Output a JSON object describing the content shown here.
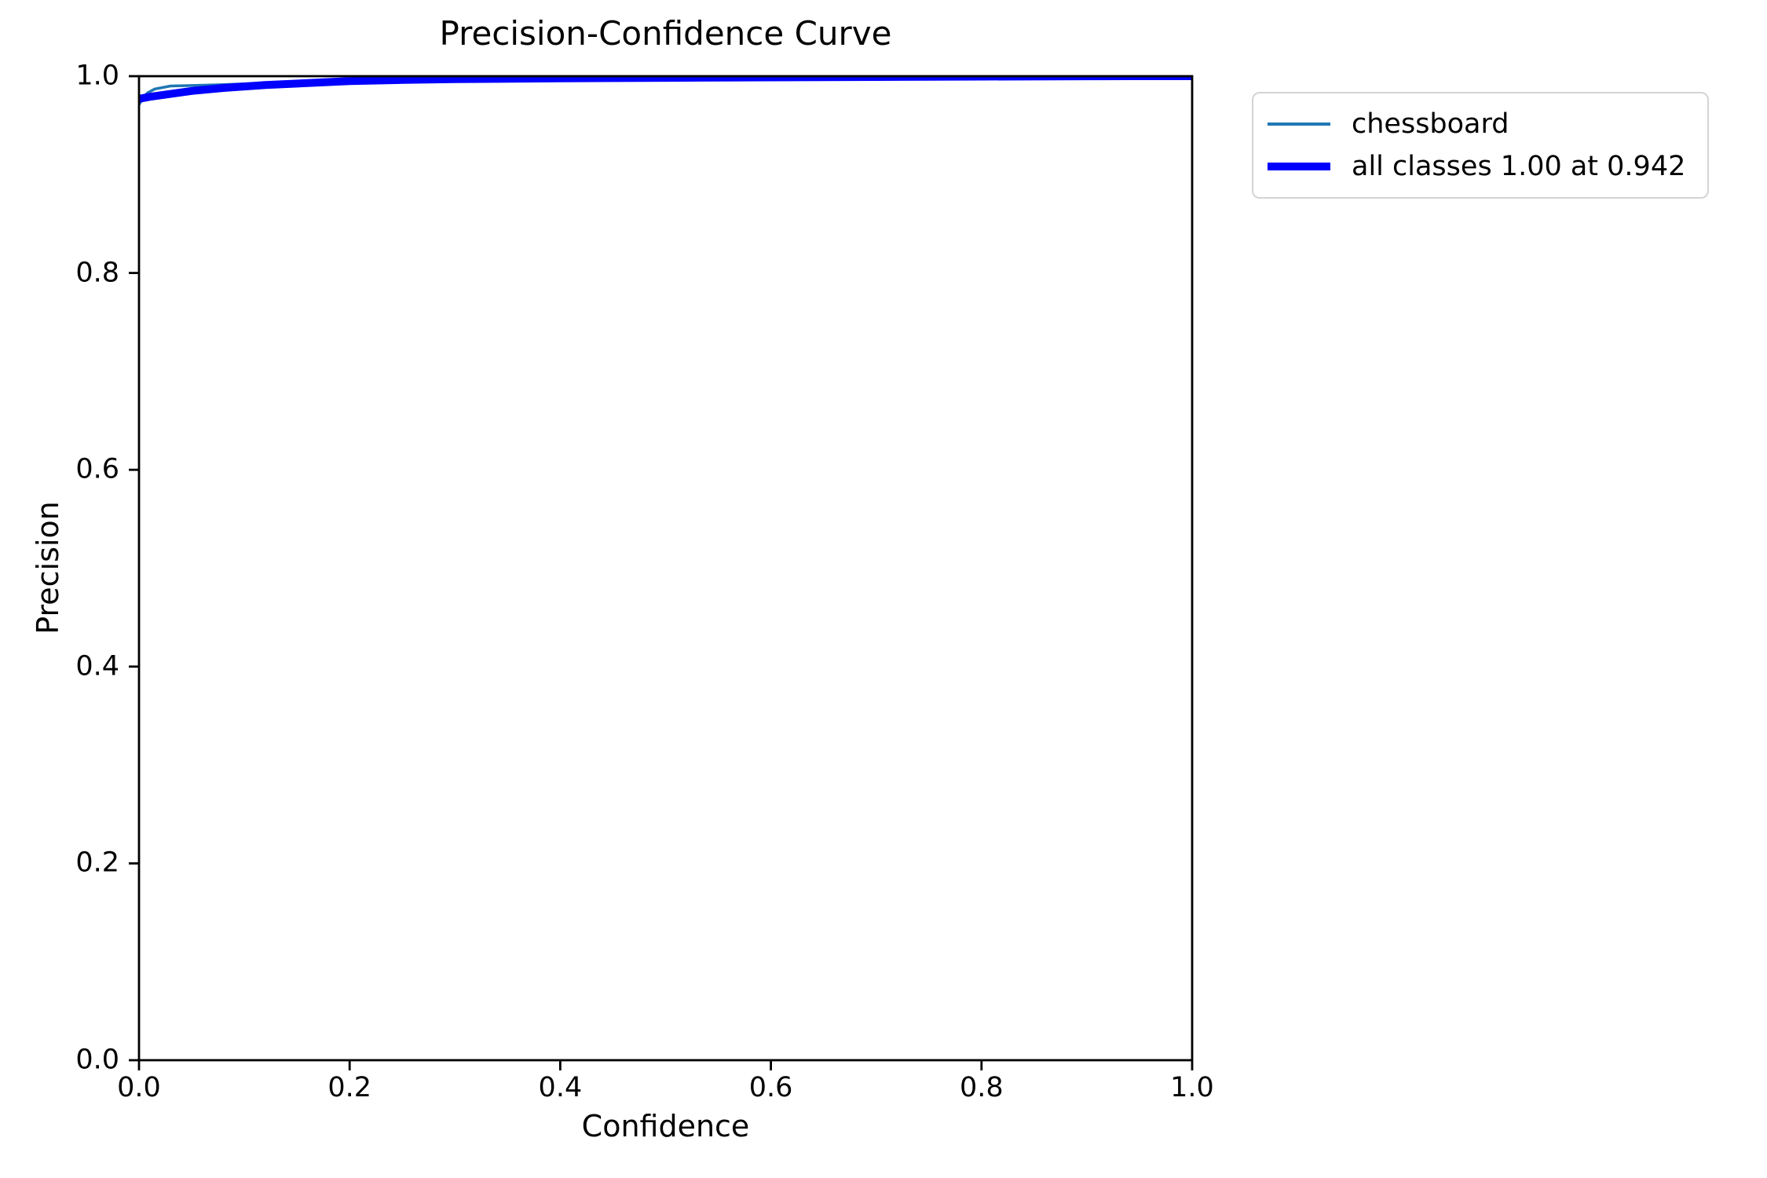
{
  "figure": {
    "background": "#ffffff",
    "spine_color": "#000000"
  },
  "chart_data": {
    "type": "line",
    "title": "Precision-Confidence Curve",
    "xlabel": "Confidence",
    "ylabel": "Precision",
    "xlim": [
      0.0,
      1.0
    ],
    "ylim": [
      0.0,
      1.0
    ],
    "grid": false,
    "x_tick_labels": [
      "0.0",
      "0.2",
      "0.4",
      "0.6",
      "0.8",
      "1.0"
    ],
    "y_tick_labels": [
      "0.0",
      "0.2",
      "0.4",
      "0.6",
      "0.8",
      "1.0"
    ],
    "legend": {
      "position": "outside-upper-right",
      "items": [
        {
          "label": "chessboard",
          "color": "#1f77b4",
          "linewidth": 3.5
        },
        {
          "label": "all classes 1.00 at 0.942",
          "color": "#0000ff",
          "linewidth": 10
        }
      ]
    },
    "series": [
      {
        "name": "chessboard",
        "color": "#1f77b4",
        "linewidth": 3.5,
        "points": [
          [
            0.0,
            0.971
          ],
          [
            0.003,
            0.976
          ],
          [
            0.008,
            0.983
          ],
          [
            0.015,
            0.987
          ],
          [
            0.03,
            0.99
          ],
          [
            0.05,
            0.9905
          ],
          [
            0.08,
            0.9915
          ],
          [
            0.12,
            0.993
          ],
          [
            0.16,
            0.9945
          ],
          [
            0.2,
            0.9955
          ],
          [
            0.25,
            0.9965
          ],
          [
            0.3,
            0.997
          ],
          [
            0.4,
            0.9978
          ],
          [
            0.5,
            0.9983
          ],
          [
            0.6,
            0.9988
          ],
          [
            0.7,
            0.9992
          ],
          [
            0.8,
            0.9996
          ],
          [
            0.9,
            0.9999
          ],
          [
            0.942,
            1.0
          ],
          [
            1.0,
            1.0
          ]
        ]
      },
      {
        "name": "all classes 1.00 at 0.942",
        "color": "#0000ff",
        "linewidth": 10,
        "points": [
          [
            0.0,
            0.977
          ],
          [
            0.01,
            0.979
          ],
          [
            0.03,
            0.982
          ],
          [
            0.05,
            0.985
          ],
          [
            0.08,
            0.988
          ],
          [
            0.12,
            0.991
          ],
          [
            0.16,
            0.993
          ],
          [
            0.2,
            0.995
          ],
          [
            0.25,
            0.9962
          ],
          [
            0.3,
            0.997
          ],
          [
            0.4,
            0.9978
          ],
          [
            0.5,
            0.9983
          ],
          [
            0.6,
            0.9988
          ],
          [
            0.7,
            0.9992
          ],
          [
            0.8,
            0.9996
          ],
          [
            0.9,
            0.9999
          ],
          [
            0.942,
            1.0
          ],
          [
            1.0,
            1.0
          ]
        ]
      }
    ]
  }
}
